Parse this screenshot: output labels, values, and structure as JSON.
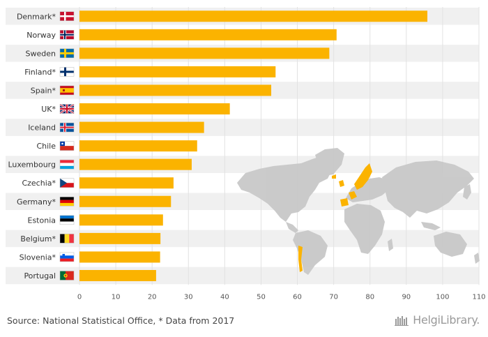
{
  "chart_data": {
    "type": "bar",
    "orientation": "horizontal",
    "categories": [
      "Denmark*",
      "Norway",
      "Sweden",
      "Finland*",
      "Spain*",
      "UK*",
      "Iceland",
      "Chile",
      "Luxembourg",
      "Czechia*",
      "Germany*",
      "Estonia",
      "Belgium*",
      "Slovenia*",
      "Portugal"
    ],
    "values": [
      95.8,
      70.8,
      68.8,
      54.0,
      52.8,
      41.4,
      34.3,
      32.4,
      30.9,
      25.9,
      25.2,
      23.0,
      22.3,
      22.2,
      21.1
    ],
    "flags": [
      "denmark-flag",
      "norway-flag",
      "sweden-flag",
      "finland-flag",
      "spain-flag",
      "uk-flag",
      "iceland-flag",
      "chile-flag",
      "luxembourg-flag",
      "czechia-flag",
      "germany-flag",
      "estonia-flag",
      "belgium-flag",
      "slovenia-flag",
      "portugal-flag"
    ],
    "xlim": [
      0,
      110
    ],
    "xticks": [
      "0",
      "10",
      "20",
      "30",
      "40",
      "50",
      "60",
      "70",
      "80",
      "90",
      "100",
      "110"
    ],
    "bar_color": "#fbb300",
    "grid": true,
    "background_map": "world-map"
  },
  "footer": {
    "source": "Source: National Statistical Office, * Data from 2017",
    "brand": "HelgiLibrary."
  },
  "colors": {
    "band": "#f0f0f0",
    "map_land": "#c8c8c8",
    "map_highlight": "#fbb300",
    "grid": "#e2e2e2"
  }
}
